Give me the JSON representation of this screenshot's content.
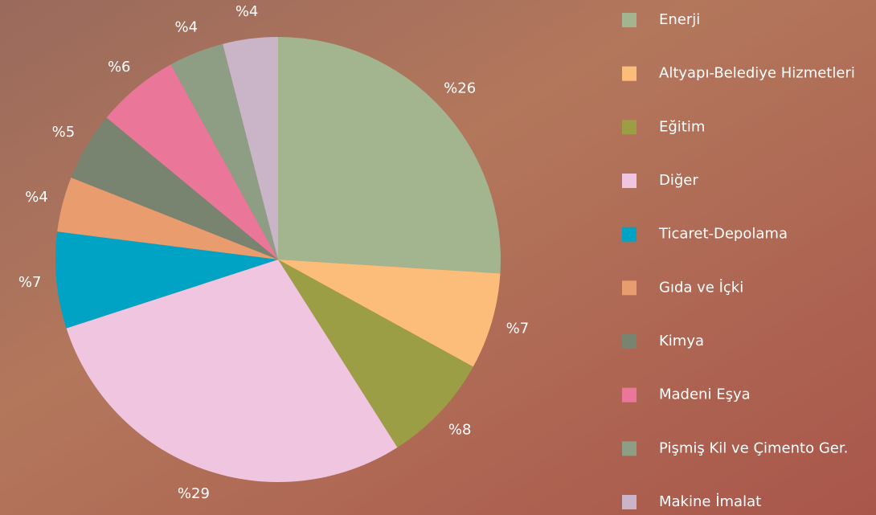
{
  "chart_data": {
    "type": "pie",
    "categories": [
      "Enerji",
      "Altyapı-Belediye Hizmetleri",
      "Eğitim",
      "Diğer",
      "Ticaret-Depolama",
      "Gıda ve İçki",
      "Kimya",
      "Madeni Eşya",
      "Pişmiş Kil ve Çimento Ger.",
      "Makine İmalat"
    ],
    "values": [
      26,
      7,
      8,
      29,
      7,
      4,
      5,
      6,
      4,
      4
    ],
    "value_labels": [
      "%26",
      "%7",
      "%8",
      "%29",
      "%7",
      "%4",
      "%5",
      "%6",
      "%4",
      "%4"
    ],
    "colors": [
      "#a3b58f",
      "#fdbd7a",
      "#9c9e45",
      "#f0c5df",
      "#00a3c4",
      "#e99c6d",
      "#78846f",
      "#ea7799",
      "#8e9e85",
      "#c9b5c7"
    ],
    "legend": "right"
  }
}
